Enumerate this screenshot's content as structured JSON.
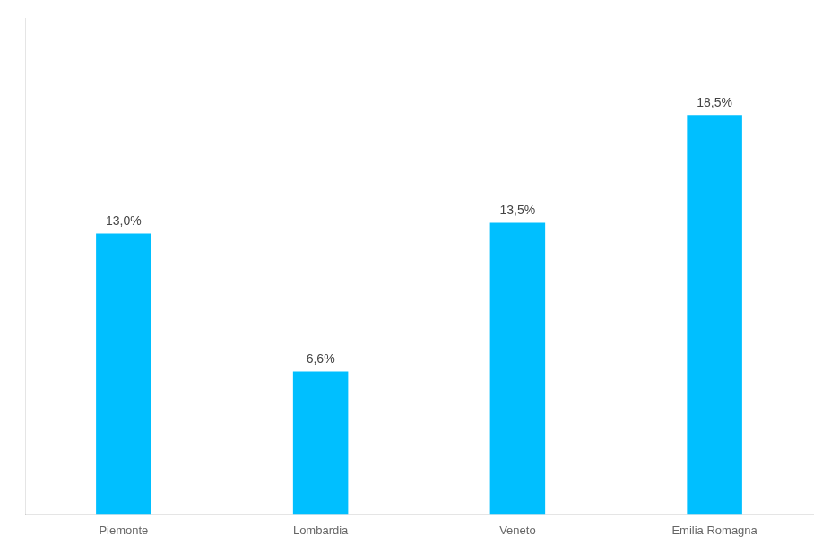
{
  "chart_data": {
    "type": "bar",
    "categories": [
      "Piemonte",
      "Lombardia",
      "Veneto",
      "Emilia Romagna"
    ],
    "values": [
      13.0,
      6.6,
      13.5,
      18.5
    ],
    "value_labels": [
      "13,0%",
      "6,6%",
      "13,5%",
      "18,5%"
    ],
    "color": "#00BFFF",
    "ylim": [
      0,
      23
    ],
    "grid": false,
    "data_labels": true,
    "tick_labels": "x"
  }
}
